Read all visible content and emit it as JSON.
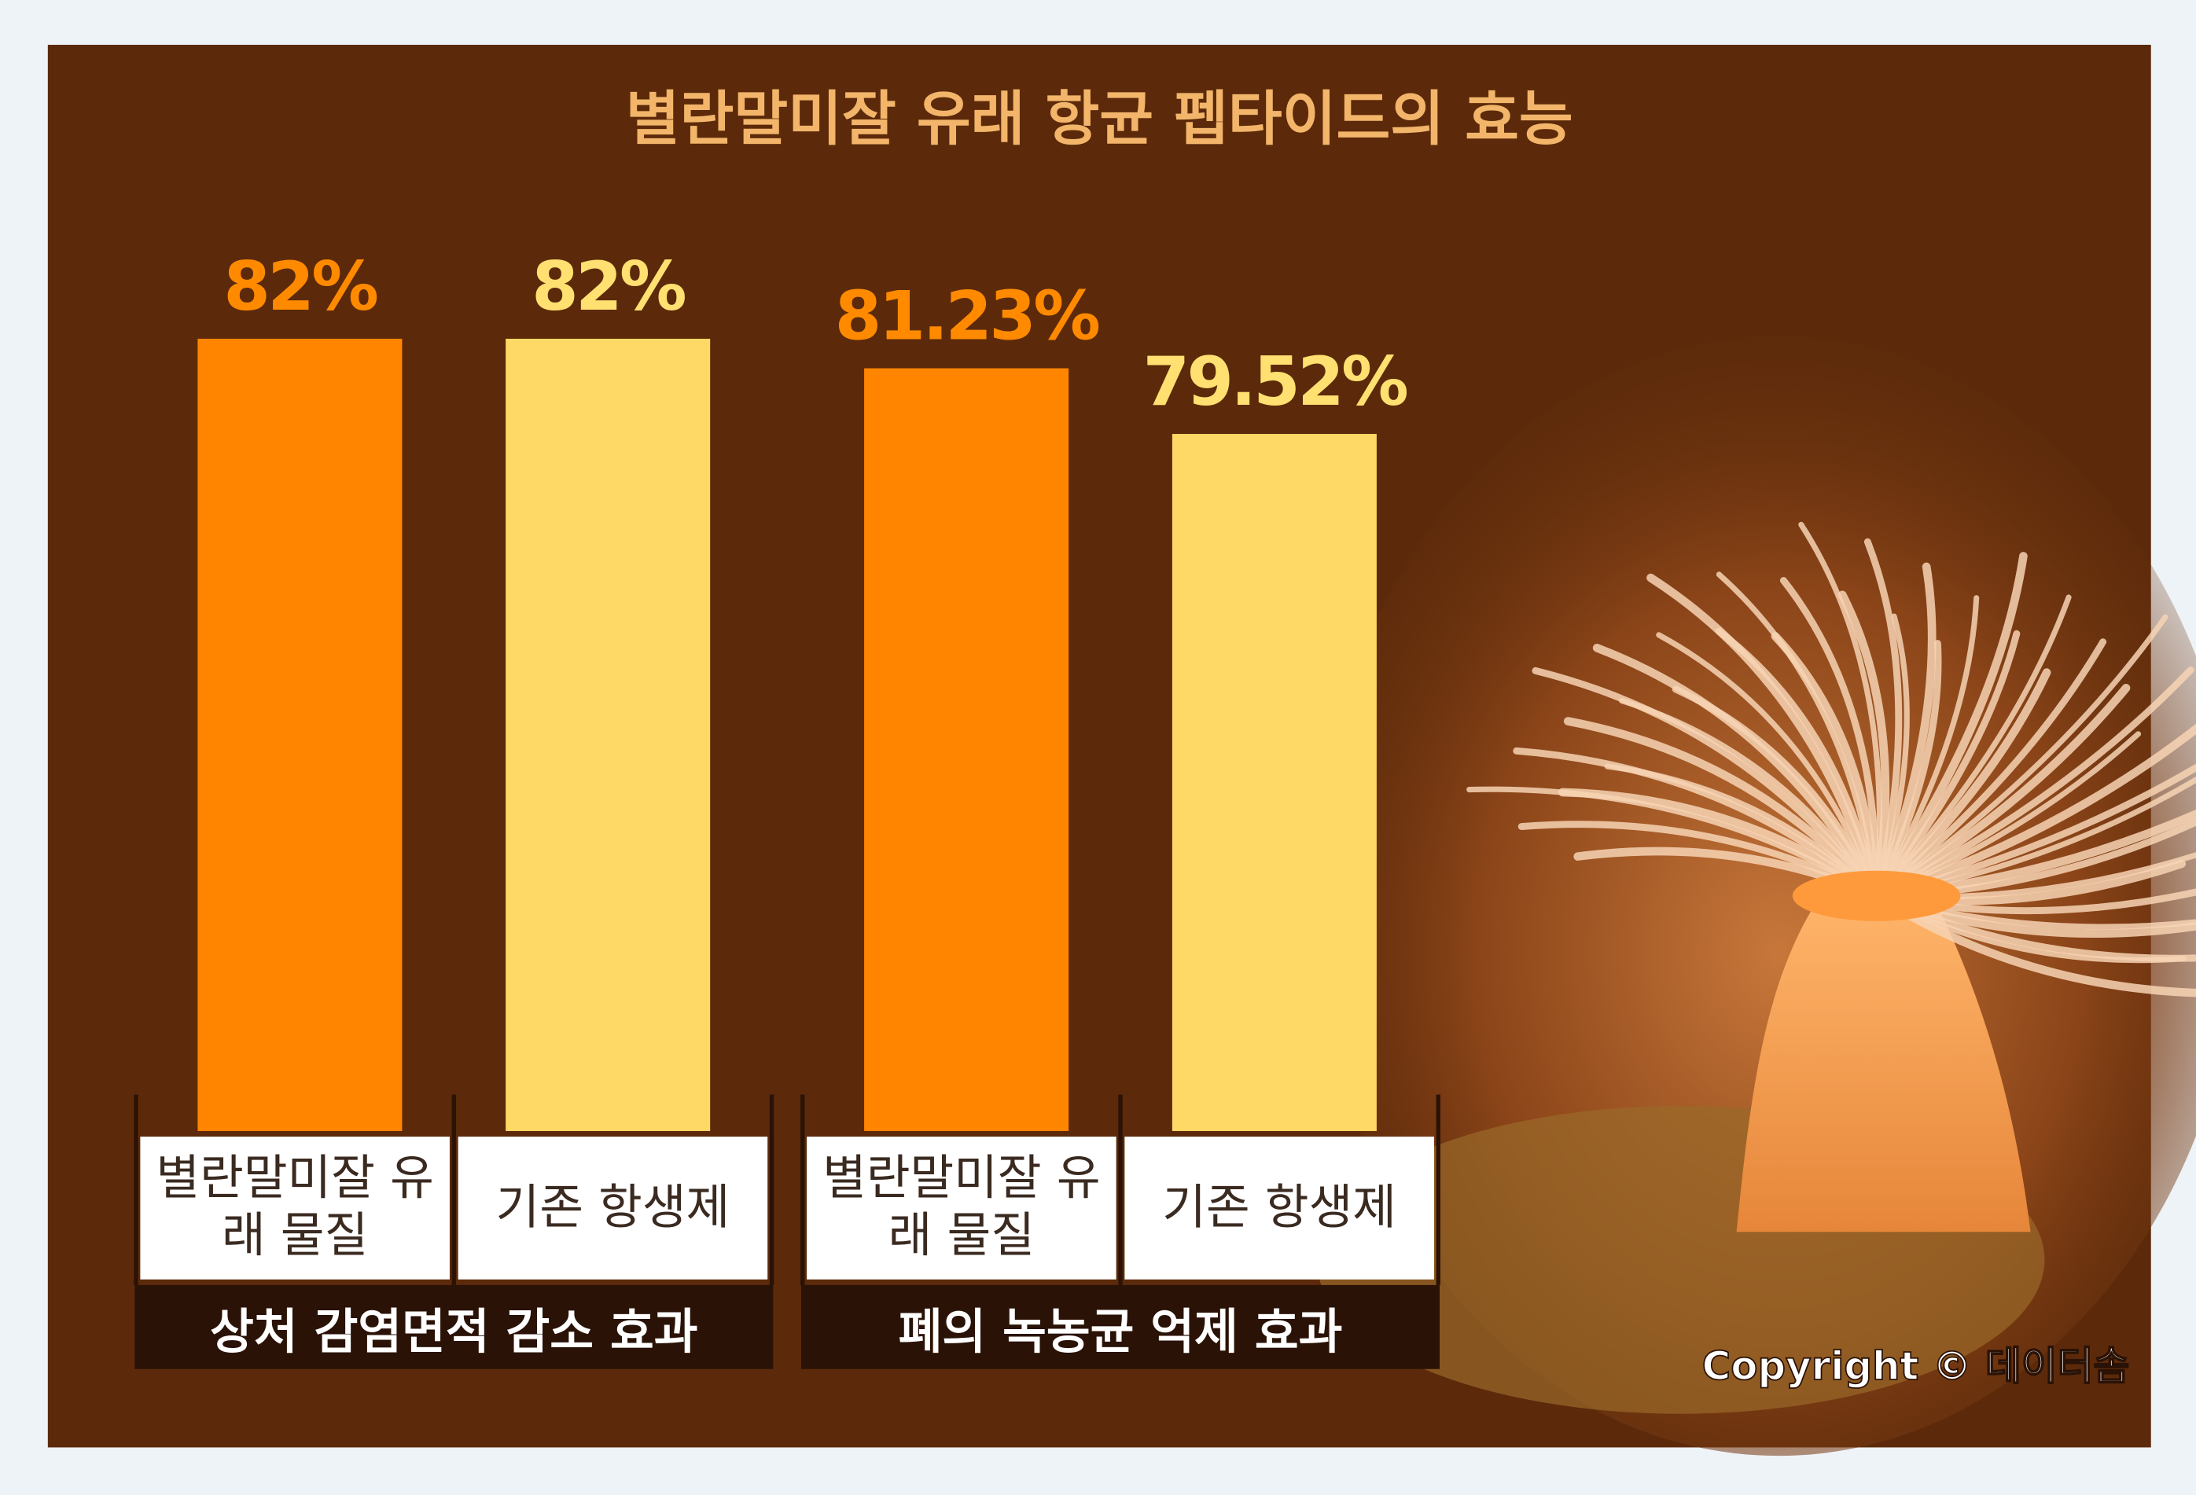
{
  "chart_data": {
    "type": "bar",
    "title": "별란말미잘 유래 항균 펩타이드의 효능",
    "categories": [
      "상처 감염면적 감소 효과",
      "폐의 녹농균 억제 효과"
    ],
    "series": [
      {
        "name": "별란말미잘 유래 물질",
        "color": "#ff8500",
        "values": [
          82,
          81.23
        ],
        "value_labels": [
          "82%",
          "81.23%"
        ]
      },
      {
        "name": "기존 항생제",
        "color": "#ffd966",
        "values": [
          82,
          79.52
        ],
        "value_labels": [
          "82%",
          "79.52%"
        ]
      }
    ],
    "ylim": [
      61.35,
      82
    ],
    "copyright": "Copyright © 데이터솜"
  }
}
